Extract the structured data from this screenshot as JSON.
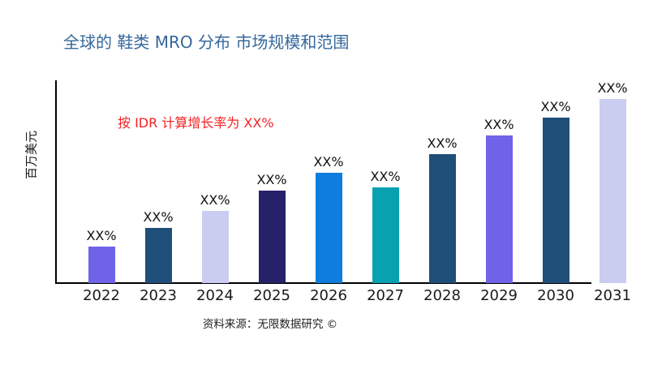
{
  "page": {
    "background": "#ffffff"
  },
  "colors": {
    "title": "#35689C",
    "annotation": "#F32222",
    "axis": "#000000",
    "tick_text": "#1a1a1a",
    "bar_label_text": "#111111"
  },
  "chart_data": {
    "type": "bar",
    "title": "全球的 鞋类 MRO 分布 市场规模和范围",
    "annotation": "按 IDR 计算增长率为 XX%",
    "xlabel": "",
    "ylabel": "百万美元",
    "source": "资料来源：无限数据研究 ©",
    "categories": [
      "2022",
      "2023",
      "2024",
      "2025",
      "2026",
      "2027",
      "2028",
      "2029",
      "2030",
      "2031"
    ],
    "values": [
      20,
      30,
      39,
      50,
      60,
      52,
      70,
      80,
      90,
      100
    ],
    "ylim": [
      0,
      100
    ],
    "bar_labels": [
      "XX%",
      "XX%",
      "XX%",
      "XX%",
      "XX%",
      "XX%",
      "XX%",
      "XX%",
      "XX%",
      "XX%"
    ],
    "bar_colors": [
      "#6F63E8",
      "#1F4E79",
      "#CACDEF",
      "#262168",
      "#0E7DDE",
      "#07A1AF",
      "#1F4E79",
      "#6F63E8",
      "#1F4E79",
      "#CACDEF"
    ],
    "grid": false,
    "legend": false
  }
}
